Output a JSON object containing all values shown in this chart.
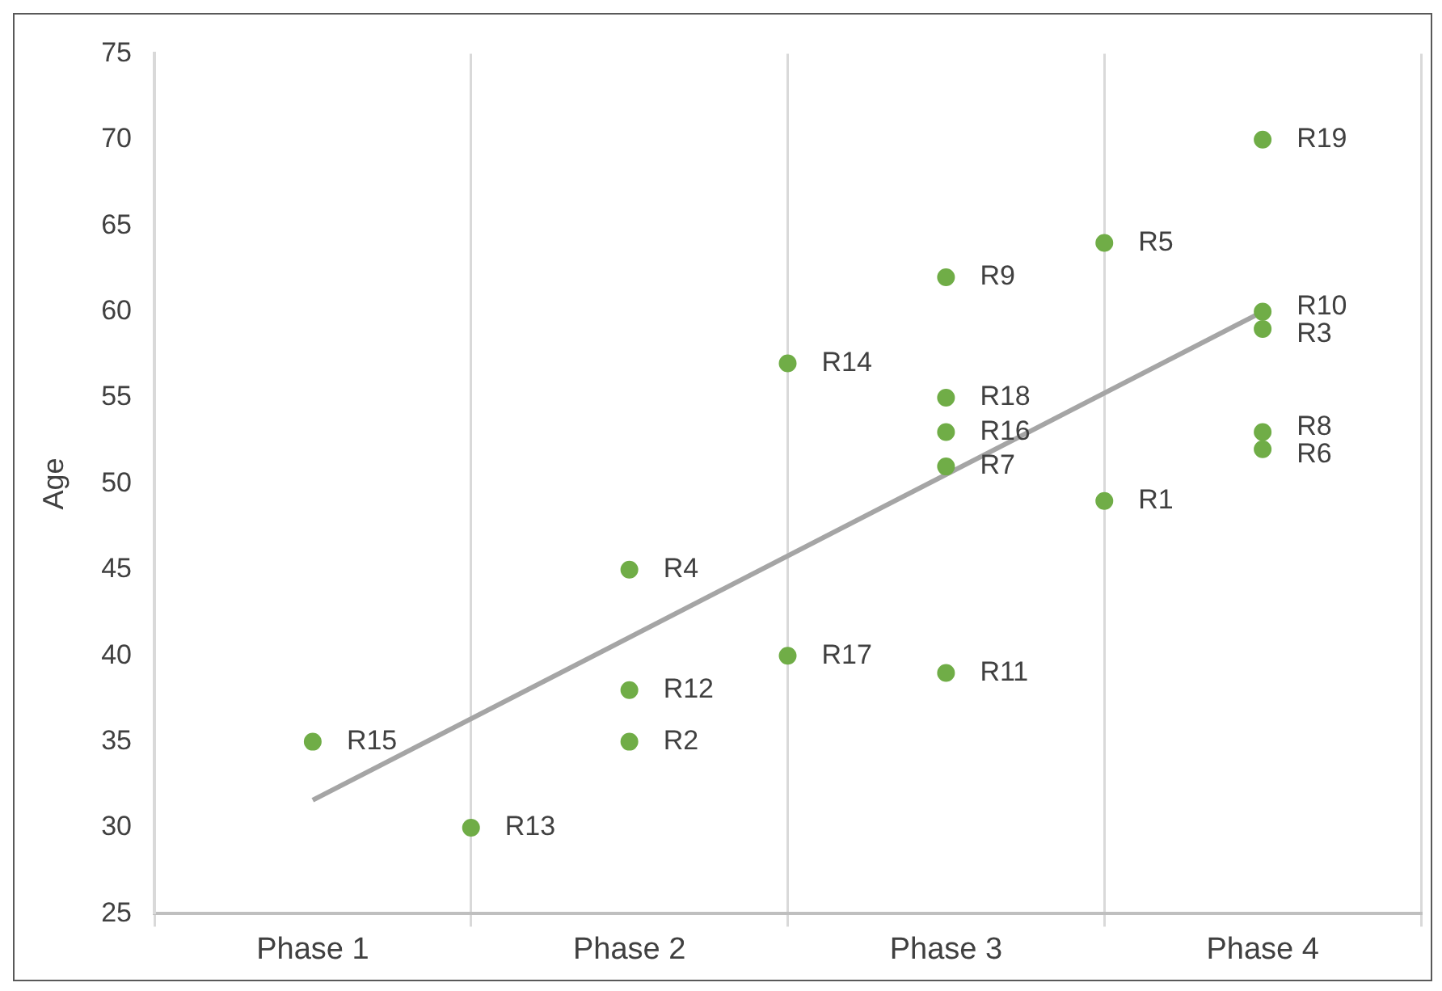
{
  "chart_data": {
    "type": "scatter",
    "ylabel": "Age",
    "categories": [
      "Phase 1",
      null,
      "Phase 2",
      null,
      "Phase 3",
      null,
      "Phase 4"
    ],
    "ylim": [
      25,
      75
    ],
    "yticks": [
      25,
      30,
      35,
      40,
      45,
      50,
      55,
      60,
      65,
      70,
      75
    ],
    "grid": "x",
    "legend": false,
    "marker": "circle",
    "series": [
      {
        "color": "#70ad47",
        "values": [
          35,
          30,
          45,
          57,
          62,
          64,
          70
        ],
        "value_labels": [
          "R15",
          "R13",
          "R4",
          "R14",
          "R9",
          "R5",
          "R19"
        ]
      },
      {
        "color": "#70ad47",
        "values": [
          null,
          null,
          38,
          40,
          55,
          49,
          60
        ],
        "value_labels": [
          null,
          null,
          "R12",
          "R17",
          "R18",
          "R1",
          "R10"
        ]
      },
      {
        "color": "#70ad47",
        "values": [
          null,
          null,
          35,
          null,
          53,
          null,
          59
        ],
        "value_labels": [
          null,
          null,
          "R2",
          null,
          "R16",
          null,
          "R3"
        ]
      },
      {
        "color": "#70ad47",
        "values": [
          null,
          null,
          null,
          null,
          51,
          null,
          53
        ],
        "value_labels": [
          null,
          null,
          null,
          null,
          "R7",
          null,
          "R8"
        ]
      },
      {
        "color": "#70ad47",
        "values": [
          null,
          null,
          null,
          null,
          39,
          null,
          52
        ],
        "value_labels": [
          null,
          null,
          null,
          null,
          "R11",
          null,
          "R6"
        ]
      },
      {
        "type": "line",
        "color": "#a5a5a5",
        "values": [
          31.6,
          null,
          null,
          null,
          null,
          null,
          60
        ],
        "marker": "none"
      }
    ]
  }
}
